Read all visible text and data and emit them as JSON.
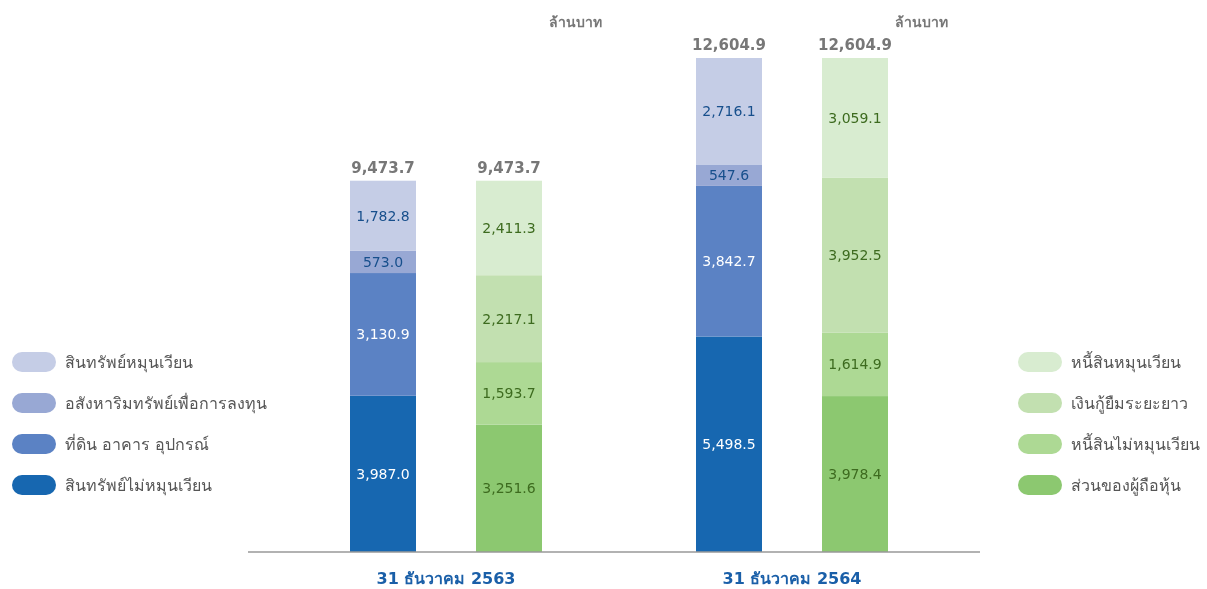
{
  "chart_data": {
    "type": "bar",
    "stacked": true,
    "categories": [
      null,
      null,
      null,
      null
    ],
    "ylabel": "ล้านบาท",
    "annotations": [
      "31 ธันวาคม 2563",
      "31 ธันวาคม 2564"
    ],
    "totals": [
      "9,473.7",
      "9,473.7",
      "12,604.9",
      "12,604.9"
    ],
    "legend": "left",
    "series": [
      {
        "name": "สินทรัพย์ไม่หมุนเวียน",
        "color": "#1767b0",
        "values": [
          3987.0,
          null,
          5498.5,
          null
        ],
        "value_labels": [
          "3,987.0",
          null,
          "5,498.5",
          null
        ]
      },
      {
        "name": "ที่ดิน อาคาร อุปกรณ์",
        "color": "#5b82c4",
        "values": [
          3130.9,
          null,
          3842.7,
          null
        ],
        "value_labels": [
          "3,130.9",
          null,
          "3,842.7",
          null
        ]
      },
      {
        "name": "อสังหาริมทรัพย์เพื่อการลงทุน",
        "color": "#98a8d4",
        "values": [
          573.0,
          null,
          547.6,
          null
        ],
        "value_labels": [
          "573.0",
          null,
          "547.6",
          null
        ]
      },
      {
        "name": "สินทรัพย์หมุนเวียน",
        "color": "#c5cde6",
        "values": [
          1782.8,
          null,
          2716.1,
          null
        ],
        "value_labels": [
          "1,782.8",
          null,
          "2,716.1",
          null
        ]
      },
      {
        "name": "ส่วนของผู้ถือหุ้น",
        "color": "#8cc870",
        "values": [
          null,
          3251.6,
          null,
          3978.4
        ],
        "value_labels": [
          null,
          "3,251.6",
          null,
          "3,978.4"
        ]
      },
      {
        "name": "หนี้สินไม่หมุนเวียน",
        "color": "#add994",
        "values": [
          null,
          1593.7,
          null,
          1614.9
        ],
        "value_labels": [
          null,
          "1,593.7",
          null,
          "1,614.9"
        ]
      },
      {
        "name": "เงินกู้ยืมระยะยาว",
        "color": "#c2e0b0",
        "values": [
          null,
          2217.1,
          null,
          3952.5
        ],
        "value_labels": [
          null,
          "2,217.1",
          null,
          "3,952.5"
        ]
      },
      {
        "name": "หนี้สินหมุนเวียน",
        "color": "#d8ecd0",
        "values": [
          null,
          2411.3,
          null,
          3059.1
        ],
        "value_labels": [
          null,
          "2,411.3",
          null,
          "3,059.1"
        ]
      }
    ]
  }
}
